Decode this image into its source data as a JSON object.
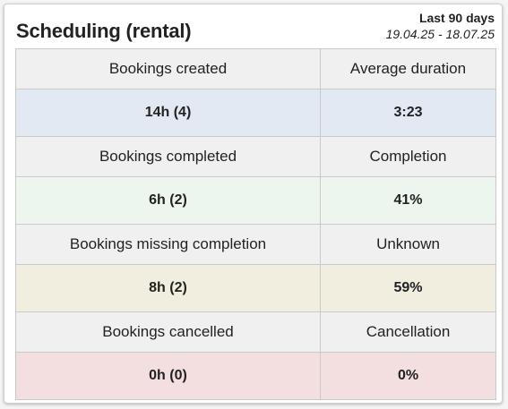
{
  "card": {
    "title": "Scheduling (rental)",
    "period_label": "Last 90 days",
    "period_range": "19.04.25 - 18.07.25"
  },
  "rows": [
    {
      "left_label": "Bookings created",
      "right_label": "Average duration",
      "left_value": "14h (4)",
      "right_value": "3:23",
      "color": "#e3e9f3"
    },
    {
      "left_label": "Bookings completed",
      "right_label": "Completion",
      "left_value": "6h (2)",
      "right_value": "41%",
      "color": "#edf6ee"
    },
    {
      "left_label": "Bookings missing completion",
      "right_label": "Unknown",
      "left_value": "8h (2)",
      "right_value": "59%",
      "color": "#f1eee0"
    },
    {
      "left_label": "Bookings cancelled",
      "right_label": "Cancellation",
      "left_value": "0h (0)",
      "right_value": "0%",
      "color": "#f4dfe0"
    }
  ]
}
